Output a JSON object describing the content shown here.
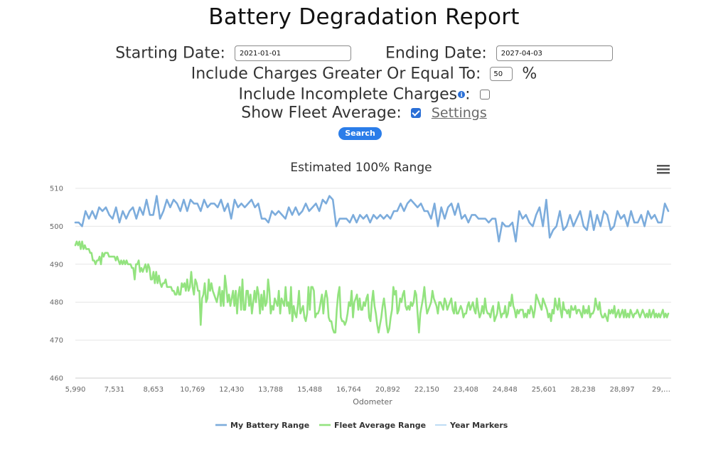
{
  "title": "Battery Degradation Report",
  "form": {
    "start_label": "Starting Date:",
    "start_value": "2021-01-01",
    "end_label": "Ending Date:",
    "end_value": "2027-04-03",
    "charge_label": "Include Charges Greater Or Equal To:",
    "charge_value": "50",
    "charge_unit": "%",
    "incomplete_label": "Include Incomplete Charges",
    "incomplete_colon": ":",
    "incomplete_checked": false,
    "fleet_label": "Show Fleet Average:",
    "fleet_checked": true,
    "settings_link": "Settings",
    "search_button": "Search",
    "info_icon": "info-icon"
  },
  "colors": {
    "my_battery": "#7cacdc",
    "fleet": "#93e37f",
    "year_markers": "#a9d0f0",
    "accent": "#2b7de9"
  },
  "chart_data": {
    "type": "line",
    "title": "Estimated 100% Range",
    "xlabel": "Odometer",
    "ylabel": "",
    "ylim": [
      460,
      510
    ],
    "yticks": [
      460,
      470,
      480,
      490,
      500,
      510
    ],
    "xtick_labels": [
      "5,990",
      "7,531",
      "8,653",
      "10,769",
      "12,430",
      "13,788",
      "15,488",
      "16,764",
      "20,892",
      "22,150",
      "23,408",
      "24,848",
      "25,601",
      "28,238",
      "28,897",
      "29,…"
    ],
    "legend_position": "bottom",
    "grid": true,
    "series": [
      {
        "name": "My Battery Range",
        "values": [
          501,
          501,
          500,
          504,
          502,
          504,
          502,
          505,
          504,
          505,
          503,
          502,
          505,
          501,
          504,
          502,
          504,
          505,
          502,
          505,
          503,
          507,
          503,
          503,
          508,
          502,
          504,
          507,
          505,
          507,
          506,
          504,
          507,
          504,
          507,
          506,
          506,
          504,
          507,
          505,
          506,
          506,
          505,
          507,
          504,
          506,
          502,
          507,
          505,
          506,
          505,
          506,
          507,
          505,
          506,
          502,
          502,
          501,
          504,
          503,
          504,
          503,
          502,
          505,
          503,
          505,
          503,
          504,
          506,
          504,
          505,
          506,
          504,
          507,
          506,
          508,
          507,
          500,
          502,
          502,
          502,
          501,
          503,
          501,
          503,
          502,
          503,
          501,
          503,
          502,
          503,
          502,
          503,
          502,
          504,
          504,
          506,
          504,
          506,
          507,
          506,
          505,
          506,
          504,
          504,
          502,
          506,
          500,
          505,
          502,
          505,
          506,
          503,
          506,
          502,
          503,
          501,
          503,
          503,
          502,
          502,
          502,
          501,
          502,
          502,
          496,
          501,
          500,
          500,
          501,
          496,
          504,
          502,
          503,
          501,
          500,
          503,
          505,
          500,
          507,
          497,
          499,
          500,
          504,
          499,
          500,
          503,
          500,
          502,
          504,
          500,
          499,
          504,
          499,
          503,
          500,
          504,
          503,
          499,
          500,
          504,
          502,
          503,
          500,
          504,
          501,
          501,
          503,
          500,
          504,
          502,
          503,
          501,
          501,
          506,
          504
        ]
      },
      {
        "name": "Fleet Average Range",
        "values": [
          495,
          496,
          495,
          496,
          494,
          496,
          494,
          495,
          494,
          494,
          494,
          493,
          493,
          491,
          491,
          490,
          491,
          491,
          492,
          490,
          493,
          492,
          493,
          493,
          493,
          492,
          492,
          492,
          492,
          492,
          491,
          492,
          491,
          490,
          491,
          490,
          491,
          490,
          491,
          490,
          490,
          490,
          489,
          489,
          486,
          490,
          490,
          491,
          488,
          489,
          488,
          489,
          490,
          488,
          490,
          489,
          486,
          486,
          488,
          485,
          488,
          485,
          487,
          485,
          484,
          485,
          485,
          486,
          484,
          484,
          484,
          484,
          483,
          483,
          482,
          482,
          484,
          482,
          482,
          485,
          484,
          485,
          483,
          486,
          483,
          484,
          488,
          484,
          482,
          486,
          485,
          483,
          483,
          474,
          481,
          482,
          485,
          480,
          481,
          486,
          483,
          485,
          483,
          482,
          481,
          480,
          482,
          484,
          479,
          483,
          479,
          487,
          484,
          480,
          482,
          479,
          481,
          483,
          479,
          483,
          477,
          482,
          484,
          478,
          486,
          478,
          478,
          483,
          483,
          479,
          482,
          477,
          480,
          483,
          480,
          484,
          482,
          477,
          482,
          478,
          483,
          479,
          480,
          486,
          483,
          477,
          479,
          478,
          481,
          480,
          479,
          483,
          477,
          481,
          480,
          479,
          484,
          479,
          480,
          477,
          484,
          475,
          479,
          477,
          476,
          479,
          483,
          477,
          478,
          479,
          476,
          475,
          477,
          484,
          478,
          484,
          484,
          483,
          476,
          477,
          477,
          478,
          480,
          482,
          477,
          481,
          483,
          481,
          476,
          475,
          475,
          473,
          472,
          472,
          478,
          482,
          484,
          476,
          475,
          475,
          474,
          475,
          477,
          480,
          479,
          483,
          476,
          480,
          481,
          482,
          478,
          481,
          478,
          478,
          480,
          479,
          481,
          482,
          476,
          475,
          480,
          483,
          479,
          477,
          474,
          472,
          474,
          476,
          479,
          481,
          478,
          474,
          472,
          473,
          476,
          478,
          484,
          482,
          483,
          477,
          478,
          481,
          480,
          482,
          483,
          479,
          478,
          479,
          478,
          480,
          479,
          480,
          483,
          482,
          477,
          472,
          477,
          479,
          481,
          484,
          480,
          477,
          478,
          479,
          480,
          483,
          481,
          480,
          479,
          477,
          480,
          480,
          479,
          478,
          481,
          480,
          478,
          479,
          480,
          481,
          478,
          477,
          480,
          477,
          477,
          478,
          479,
          478,
          476,
          477,
          477,
          479,
          480,
          478,
          479,
          480,
          478,
          477,
          481,
          478,
          476,
          477,
          479,
          477,
          481,
          478,
          477,
          477,
          476,
          478,
          479,
          475,
          476,
          477,
          480,
          478,
          476,
          477,
          477,
          479,
          476,
          477,
          480,
          479,
          482,
          479,
          478,
          476,
          478,
          477,
          478,
          478,
          478,
          476,
          477,
          476,
          478,
          477,
          479,
          478,
          476,
          478,
          482,
          481,
          480,
          479,
          478,
          481,
          480,
          479,
          478,
          476,
          477,
          475,
          478,
          477,
          481,
          479,
          478,
          481,
          478,
          476,
          480,
          478,
          478,
          477,
          478,
          476,
          479,
          478,
          478,
          479,
          477,
          478,
          478,
          477,
          476,
          479,
          477,
          478,
          477,
          479,
          476,
          477,
          477,
          478,
          481,
          479,
          478,
          480,
          477,
          476,
          476,
          477,
          476,
          475,
          478,
          477,
          478,
          477,
          479,
          476,
          477,
          478,
          476,
          477,
          478,
          476,
          478,
          476,
          477,
          476,
          478,
          477,
          476,
          477,
          477,
          478,
          477,
          476,
          477,
          478,
          477,
          476,
          477,
          476,
          478,
          476,
          477,
          478,
          476,
          477,
          476,
          477,
          476,
          477,
          478,
          476,
          477,
          476,
          477
        ]
      },
      {
        "name": "Year Markers",
        "values": []
      }
    ]
  }
}
